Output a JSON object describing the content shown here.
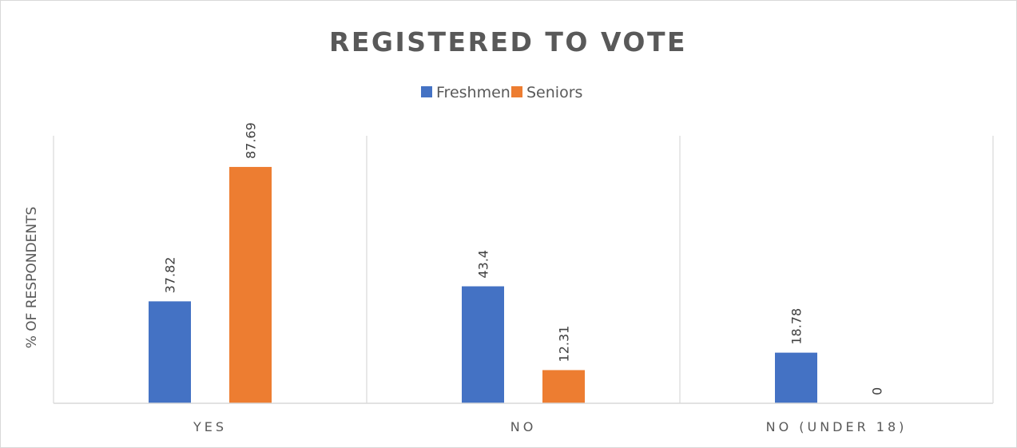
{
  "chart_data": {
    "type": "bar",
    "title": "REGISTERED TO VOTE",
    "ylabel": "% OF RESPONDENTS",
    "xlabel": "",
    "categories": [
      "YES",
      "NO",
      "NO (UNDER 18)"
    ],
    "series": [
      {
        "name": "Freshmen",
        "color": "#4472c4",
        "values": [
          37.82,
          43.4,
          18.78
        ]
      },
      {
        "name": "Seniors",
        "color": "#ed7d31",
        "values": [
          87.69,
          12.31,
          0
        ]
      }
    ],
    "ylim": [
      0,
      100
    ],
    "grid": false,
    "legend_position": "top"
  }
}
